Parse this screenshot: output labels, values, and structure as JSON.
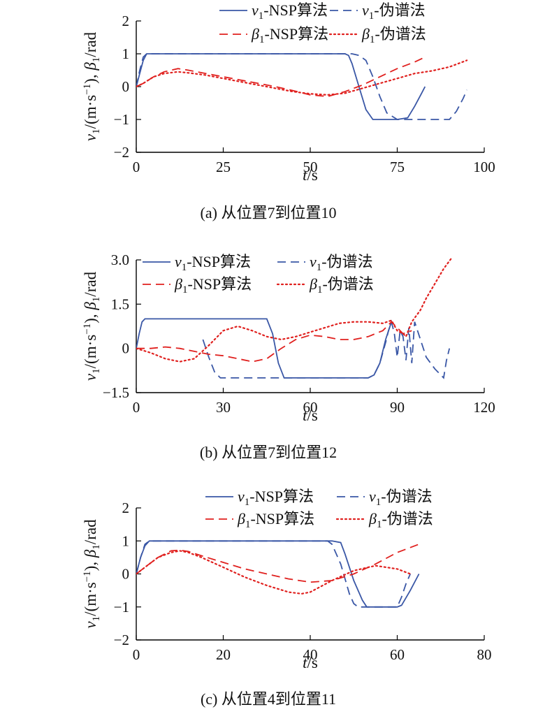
{
  "figure_captions": [
    "(a) 从位置7到位置10",
    "(b) 从位置7到位置12",
    "(c) 从位置4到位置11"
  ],
  "colors": {
    "nsp_v": "#3a57a6",
    "ps_v": "#3a57a6",
    "nsp_beta": "#e0201e",
    "ps_beta": "#e0201e"
  },
  "chart_data": [
    {
      "type": "line",
      "caption": "(a) 从位置7到位置10",
      "xlabel": "t/s",
      "ylabel": "v1/(m·s−1), β1/rad",
      "xlim": [
        0,
        100
      ],
      "ylim": [
        -2,
        2
      ],
      "xticks": [
        0,
        25,
        50,
        75,
        100
      ],
      "xtick_labels": [
        "0",
        "25",
        "50",
        "75",
        "100"
      ],
      "yticks": [
        -2,
        -1,
        0,
        1,
        2
      ],
      "ytick_labels": [
        "−2",
        "−1",
        "0",
        "1",
        "2"
      ],
      "legend": [
        "v1-NSP算法",
        "v1-伪谱法",
        "β1-NSP算法",
        "β1-伪谱法"
      ],
      "series": [
        {
          "name": "v1-NSP算法",
          "style": "solid",
          "color": "#3a57a6",
          "x": [
            0,
            1,
            2,
            3,
            5,
            10,
            20,
            40,
            60,
            61,
            62,
            64,
            66,
            68,
            70,
            75,
            78,
            80,
            82,
            83
          ],
          "y": [
            0,
            0.4,
            0.8,
            1,
            1,
            1,
            1,
            1,
            1,
            0.95,
            0.7,
            0,
            -0.7,
            -1,
            -1,
            -1,
            -0.95,
            -0.6,
            -0.2,
            0
          ]
        },
        {
          "name": "v1-伪谱法",
          "style": "dashed",
          "color": "#3a57a6",
          "x": [
            0,
            1,
            2,
            3,
            10,
            30,
            50,
            62,
            64,
            66,
            68,
            70,
            72,
            75,
            85,
            90,
            92,
            94,
            95
          ],
          "y": [
            0,
            0.5,
            0.9,
            1,
            1,
            1,
            1,
            1,
            0.95,
            0.8,
            0.3,
            -0.3,
            -0.8,
            -1,
            -1,
            -1,
            -0.75,
            -0.35,
            -0.1
          ]
        },
        {
          "name": "β1-NSP算法",
          "style": "dashed",
          "color": "#e0201e",
          "x": [
            0,
            2,
            5,
            8,
            12,
            15,
            20,
            25,
            30,
            35,
            40,
            45,
            50,
            55,
            60,
            65,
            70,
            75,
            80,
            83
          ],
          "y": [
            0,
            0.1,
            0.3,
            0.45,
            0.55,
            0.5,
            0.4,
            0.3,
            0.2,
            0.1,
            0.0,
            -0.12,
            -0.25,
            -0.3,
            -0.15,
            0.05,
            0.3,
            0.55,
            0.75,
            0.9
          ]
        },
        {
          "name": "β1-伪谱法",
          "style": "dotted",
          "color": "#e0201e",
          "x": [
            0,
            2,
            5,
            8,
            12,
            15,
            20,
            25,
            30,
            35,
            40,
            45,
            50,
            55,
            60,
            65,
            70,
            75,
            80,
            85,
            90,
            95
          ],
          "y": [
            0,
            0.1,
            0.3,
            0.4,
            0.45,
            0.42,
            0.35,
            0.25,
            0.15,
            0.05,
            -0.05,
            -0.15,
            -0.22,
            -0.25,
            -0.2,
            -0.05,
            0.1,
            0.25,
            0.4,
            0.48,
            0.6,
            0.8
          ]
        }
      ]
    },
    {
      "type": "line",
      "caption": "(b) 从位置7到位置12",
      "xlabel": "t/s",
      "ylabel": "v1/(m·s−1), β1/rad",
      "xlim": [
        0,
        120
      ],
      "ylim": [
        -1.5,
        3.0
      ],
      "xticks": [
        0,
        30,
        60,
        90,
        120
      ],
      "xtick_labels": [
        "0",
        "30",
        "60",
        "90",
        "120"
      ],
      "yticks": [
        -1.5,
        0,
        1.5,
        3.0
      ],
      "ytick_labels": [
        "−1.5",
        "0",
        "1.5",
        "3.0"
      ],
      "legend": [
        "v1-NSP算法",
        "v1-伪谱法",
        "β1-NSP算法",
        "β1-伪谱法"
      ],
      "series": [
        {
          "name": "v1-NSP算法",
          "style": "solid",
          "color": "#3a57a6",
          "x": [
            0,
            1,
            2,
            3,
            10,
            20,
            30,
            40,
            45,
            47,
            49,
            51,
            55,
            70,
            80,
            82,
            84,
            86,
            88
          ],
          "y": [
            0,
            0.5,
            0.9,
            1,
            1,
            1,
            1,
            1,
            1,
            0.5,
            -0.5,
            -1,
            -1,
            -1,
            -1,
            -0.9,
            -0.5,
            0.3,
            0.9
          ]
        },
        {
          "name": "v1-伪谱法",
          "style": "dashed",
          "color": "#3a57a6",
          "x": [
            23,
            25,
            27,
            29,
            35,
            50,
            70,
            80,
            82,
            84,
            86,
            87,
            88,
            89,
            90,
            91,
            92,
            93,
            94,
            95,
            96,
            98,
            100,
            103,
            106,
            107,
            108
          ],
          "y": [
            0.3,
            -0.3,
            -0.8,
            -1,
            -1,
            -1,
            -1,
            -1,
            -0.9,
            -0.5,
            0.2,
            0.6,
            0.9,
            0.5,
            -0.3,
            0.6,
            0.4,
            -0.4,
            0.7,
            -0.5,
            0.9,
            0.3,
            -0.3,
            -0.7,
            -1.0,
            -0.4,
            0
          ]
        },
        {
          "name": "β1-NSP算法",
          "style": "dashed",
          "color": "#e0201e",
          "x": [
            0,
            5,
            10,
            15,
            20,
            25,
            30,
            35,
            40,
            45,
            50,
            55,
            60,
            65,
            70,
            75,
            80,
            85,
            88,
            90,
            92,
            95
          ],
          "y": [
            0,
            0.0,
            0.05,
            0.0,
            -0.1,
            -0.2,
            -0.25,
            -0.35,
            -0.45,
            -0.35,
            0.0,
            0.3,
            0.45,
            0.4,
            0.3,
            0.3,
            0.4,
            0.6,
            0.9,
            0.7,
            0.5,
            0.6
          ]
        },
        {
          "name": "β1-伪谱法",
          "style": "dotted",
          "color": "#e0201e",
          "x": [
            0,
            5,
            10,
            15,
            20,
            25,
            28,
            30,
            35,
            40,
            45,
            50,
            55,
            60,
            65,
            70,
            75,
            80,
            85,
            88,
            90,
            92,
            93,
            95,
            98,
            100,
            103,
            106,
            109
          ],
          "y": [
            0,
            -0.15,
            -0.35,
            -0.45,
            -0.35,
            0.1,
            0.4,
            0.6,
            0.75,
            0.6,
            0.4,
            0.3,
            0.4,
            0.55,
            0.7,
            0.85,
            0.9,
            0.9,
            0.85,
            0.95,
            0.6,
            0.5,
            0.4,
            0.9,
            1.3,
            1.7,
            2.2,
            2.7,
            3.1
          ]
        }
      ]
    },
    {
      "type": "line",
      "caption": "(c) 从位置4到位置11",
      "xlabel": "t/s",
      "ylabel": "v1/(m·s−1), β1/rad",
      "xlim": [
        0,
        80
      ],
      "ylim": [
        -2,
        2
      ],
      "xticks": [
        0,
        20,
        40,
        60,
        80
      ],
      "xtick_labels": [
        "0",
        "20",
        "40",
        "60",
        "80"
      ],
      "yticks": [
        -2,
        -1,
        0,
        1,
        2
      ],
      "ytick_labels": [
        "−2",
        "−1",
        "0",
        "1",
        "2"
      ],
      "legend": [
        "v1-NSP算法",
        "v1-伪谱法",
        "β1-NSP算法",
        "β1-伪谱法"
      ],
      "series": [
        {
          "name": "v1-NSP算法",
          "style": "solid",
          "color": "#3a57a6",
          "x": [
            0,
            1,
            2,
            3,
            10,
            30,
            45,
            47,
            48,
            50,
            52,
            53,
            60,
            61,
            63,
            65
          ],
          "y": [
            0,
            0.5,
            0.85,
            1,
            1,
            1,
            1,
            0.95,
            0.6,
            -0.2,
            -0.8,
            -1,
            -1,
            -0.95,
            -0.5,
            0
          ]
        },
        {
          "name": "v1-伪谱法",
          "style": "dashed",
          "color": "#3a57a6",
          "x": [
            0,
            1,
            2,
            3,
            10,
            30,
            44,
            45,
            47,
            49,
            50,
            51,
            55,
            60,
            61,
            62,
            63
          ],
          "y": [
            0,
            0.5,
            0.9,
            1,
            1,
            1,
            1,
            0.9,
            0.3,
            -0.6,
            -0.9,
            -1,
            -1,
            -1,
            -0.7,
            -0.3,
            0
          ]
        },
        {
          "name": "β1-NSP算法",
          "style": "dashed",
          "color": "#e0201e",
          "x": [
            0,
            2,
            5,
            8,
            10,
            12,
            15,
            20,
            25,
            30,
            35,
            40,
            45,
            50,
            55,
            60,
            65
          ],
          "y": [
            0,
            0.2,
            0.5,
            0.7,
            0.72,
            0.68,
            0.55,
            0.35,
            0.15,
            0.0,
            -0.15,
            -0.25,
            -0.2,
            0.0,
            0.3,
            0.65,
            0.9
          ]
        },
        {
          "name": "β1-伪谱法",
          "style": "dotted",
          "color": "#e0201e",
          "x": [
            0,
            2,
            5,
            8,
            10,
            12,
            15,
            20,
            25,
            30,
            35,
            38,
            40,
            45,
            50,
            55,
            60,
            63
          ],
          "y": [
            0,
            0.2,
            0.5,
            0.65,
            0.7,
            0.65,
            0.5,
            0.2,
            -0.1,
            -0.35,
            -0.55,
            -0.6,
            -0.55,
            -0.2,
            0.1,
            0.25,
            0.15,
            0.0
          ]
        }
      ]
    }
  ]
}
